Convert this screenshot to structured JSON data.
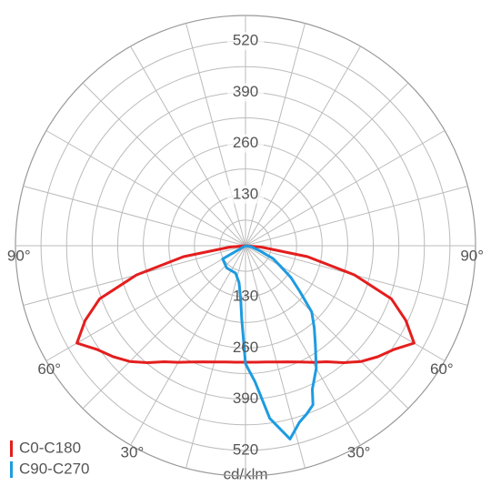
{
  "chart_data": {
    "type": "polar",
    "rlim": [
      0,
      585
    ],
    "rticks": [
      130,
      260,
      390,
      520
    ],
    "rgrid": [
      65,
      130,
      195,
      260,
      325,
      390,
      455,
      520
    ],
    "thetagrid": [
      0,
      15,
      30,
      45,
      60,
      75,
      90,
      105,
      120,
      135,
      150,
      165
    ],
    "theta_ticks": [
      {
        "value": 30,
        "label": "30°"
      },
      {
        "value": 60,
        "label": "60°"
      },
      {
        "value": 90,
        "label": "90°"
      }
    ],
    "r_label": "cd/klm",
    "legend": "bottom-left",
    "series": [
      {
        "name": "C0-C180",
        "color": "#e41e1e",
        "x": [
          -90,
          -85,
          -80,
          -75,
          -70,
          -65,
          -60,
          -55,
          -50,
          -45,
          -40,
          -35,
          -30,
          -25,
          -20,
          -15,
          -10,
          -5,
          0,
          5,
          10,
          15,
          20,
          25,
          30,
          35,
          40,
          45,
          50,
          55,
          60,
          65,
          70,
          75,
          80,
          85,
          90
        ],
        "values": [
          0,
          40,
          160,
          287,
          395,
          450,
          495,
          460,
          439,
          416,
          388,
          360,
          342,
          326,
          314,
          306,
          300,
          297,
          296,
          297,
          300,
          306,
          314,
          326,
          342,
          360,
          388,
          416,
          439,
          460,
          495,
          450,
          395,
          287,
          160,
          40,
          0
        ]
      },
      {
        "name": "C90-C270",
        "color": "#1e9be0",
        "x": [
          -90,
          -60,
          -40,
          -20,
          -10,
          -5,
          -3,
          0,
          4,
          8,
          13,
          17,
          20,
          23,
          25,
          30,
          35,
          40,
          45,
          50,
          55,
          60,
          65,
          70,
          80,
          90
        ],
        "values": [
          0,
          67,
          74,
          74,
          95,
          139,
          185,
          300,
          346,
          443,
          504,
          469,
          455,
          439,
          402,
          360,
          310,
          272,
          238,
          180,
          141,
          101,
          77,
          40,
          15,
          0
        ]
      }
    ]
  }
}
